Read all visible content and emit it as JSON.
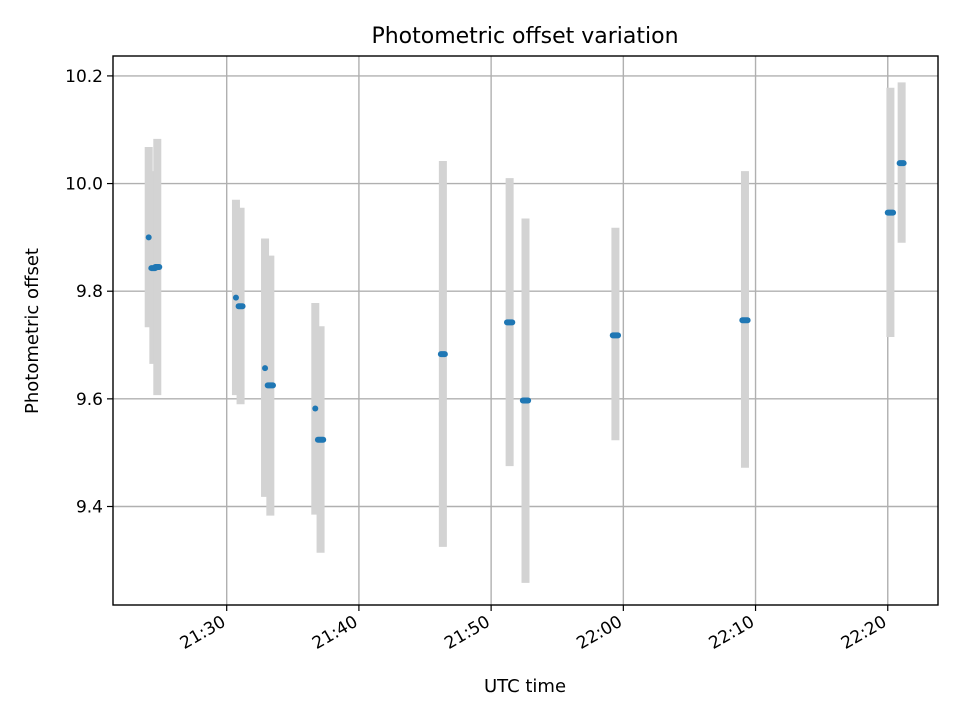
{
  "chart_data": {
    "type": "scatter",
    "title": "Photometric offset variation",
    "xlabel": "UTC time",
    "ylabel": "Photometric offset",
    "x_format": "HH:MM",
    "xlim": [
      "21:21.4",
      "22:23.8"
    ],
    "ylim": [
      9.217,
      10.237
    ],
    "x_ticks": [
      "21:30",
      "21:40",
      "21:50",
      "22:00",
      "22:10",
      "22:20"
    ],
    "y_ticks": [
      9.4,
      9.6,
      9.8,
      10.0,
      10.2
    ],
    "y_tick_labels": [
      "9.4",
      "9.6",
      "9.8",
      "10.0",
      "10.2"
    ],
    "grid": true,
    "colors": {
      "point": "#1f77b4",
      "errorbar": "#d3d3d3"
    },
    "points": [
      {
        "x": "21:24.1",
        "x_end": "21:24.1",
        "y": 9.9,
        "err_low": 9.733,
        "err_high": 10.068
      },
      {
        "x": "21:24.3",
        "x_end": "21:24.6",
        "y": 9.843,
        "err_low": 9.665,
        "err_high": 10.023
      },
      {
        "x": "21:24.6",
        "x_end": "21:24.9",
        "y": 9.845,
        "err_low": 9.607,
        "err_high": 10.083
      },
      {
        "x": "21:30.7",
        "x_end": "21:30.7",
        "y": 9.788,
        "err_low": 9.607,
        "err_high": 9.97
      },
      {
        "x": "21:30.9",
        "x_end": "21:31.2",
        "y": 9.772,
        "err_low": 9.59,
        "err_high": 9.955
      },
      {
        "x": "21:32.9",
        "x_end": "21:32.9",
        "y": 9.657,
        "err_low": 9.418,
        "err_high": 9.898
      },
      {
        "x": "21:33.1",
        "x_end": "21:33.5",
        "y": 9.625,
        "err_low": 9.383,
        "err_high": 9.866
      },
      {
        "x": "21:36.7",
        "x_end": "21:36.7",
        "y": 9.582,
        "err_low": 9.385,
        "err_high": 9.778
      },
      {
        "x": "21:36.9",
        "x_end": "21:37.3",
        "y": 9.524,
        "err_low": 9.314,
        "err_high": 9.735
      },
      {
        "x": "21:46.2",
        "x_end": "21:46.5",
        "y": 9.683,
        "err_low": 9.325,
        "err_high": 10.042
      },
      {
        "x": "21:51.2",
        "x_end": "21:51.6",
        "y": 9.742,
        "err_low": 9.475,
        "err_high": 10.01
      },
      {
        "x": "21:52.4",
        "x_end": "21:52.8",
        "y": 9.597,
        "err_low": 9.258,
        "err_high": 9.935
      },
      {
        "x": "21:59.2",
        "x_end": "21:59.6",
        "y": 9.718,
        "err_low": 9.523,
        "err_high": 9.918
      },
      {
        "x": "22:09.0",
        "x_end": "22:09.4",
        "y": 9.746,
        "err_low": 9.472,
        "err_high": 10.023
      },
      {
        "x": "22:20.0",
        "x_end": "22:20.4",
        "y": 9.946,
        "err_low": 9.715,
        "err_high": 10.178
      },
      {
        "x": "22:20.9",
        "x_end": "22:21.2",
        "y": 10.038,
        "err_low": 9.89,
        "err_high": 10.188
      }
    ]
  }
}
